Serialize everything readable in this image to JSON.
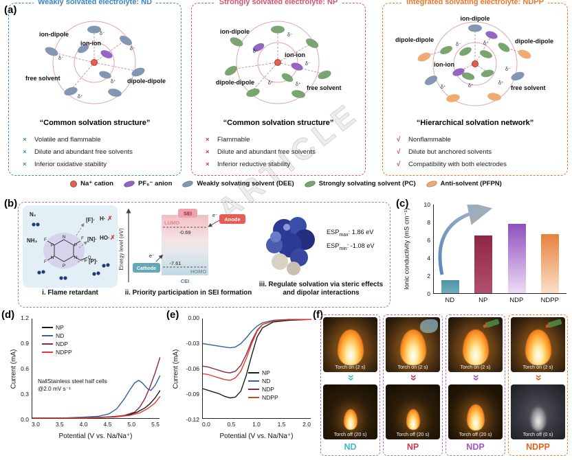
{
  "watermark": "ARTICLE",
  "symbols": {
    "delta_minus": "δ⁻",
    "delta_plus": "δ⁺",
    "cross": "✗",
    "electron": "e⁻"
  },
  "panel_labels": {
    "a": "(a)",
    "b": "(b)",
    "c": "(c)",
    "d": "(d)",
    "e": "(e)",
    "f": "(f)"
  },
  "panel_a": {
    "boxes": [
      {
        "title": "Weakly solvated electrolyte: ND",
        "accent": "#3d85c0",
        "bullet_color": "#3d85c0",
        "bullet_mark": "×",
        "subtitle": "“Common solvation structure”",
        "labels": {
          "ion_dipole": "ion-dipole",
          "ion_ion": "ion-ion",
          "dipole_dipole": "dipole-dipole",
          "free_solvent": "free solvent"
        },
        "bullets": [
          "Volatile and flammable",
          "Dilute and abundant free solvents",
          "Inferior oxidative stability"
        ]
      },
      {
        "title": "Strongly solvated electrolyte: NP",
        "accent": "#d4566a",
        "bullet_color": "#c23b50",
        "bullet_mark": "×",
        "subtitle": "“Common solvation structure”",
        "labels": {
          "ion_dipole": "ion-dipole",
          "ion_ion": "ion-ion",
          "dipole_dipole": "dipole-dipole",
          "free_solvent": "free solvent"
        },
        "bullets": [
          "Flammable",
          "Dilute and abundant free solvents",
          "Inferior reductive stability"
        ]
      },
      {
        "title": "Integrated solvating electrolyte: NDPP",
        "accent": "#e8772e",
        "bullet_color": "#c23b50",
        "bullet_mark": "√",
        "subtitle": "“Hierarchical solvation network”",
        "labels": {
          "ion_dipole": "ion-dipole",
          "dipole_dipole": "dipole-dipole",
          "dipole_dipole2": "dipole-dipole",
          "ion_ion": "ion-ion",
          "free_solvent": "free solvent"
        },
        "bullets": [
          "Nonflammable",
          "Dilute but anchored solvents",
          "Compatibility with both electrodes"
        ]
      }
    ],
    "legend": [
      {
        "label": "Na⁺ cation",
        "color": "#e0614f",
        "shape": "circle"
      },
      {
        "label": "PF₆⁻ anion",
        "color": "#9266c2",
        "shape": "ellipse"
      },
      {
        "label": "Weakly solvating solvent (DEE)",
        "color": "#8396b2",
        "shape": "ellipse"
      },
      {
        "label": "Strongly solvating solvent (PC)",
        "color": "#7aa571",
        "shape": "ellipse"
      },
      {
        "label": "Anti-solvent (PFPN)",
        "color": "#f0aa74",
        "shape": "ellipse"
      }
    ]
  },
  "panel_b": {
    "i": {
      "caption": "i. Flame retardant",
      "n2": "N₂",
      "nh3": "NH₃",
      "f_rad": "[F]·",
      "h_rad": "H·",
      "n_rad": "[N]·",
      "ho_rad": "HO·",
      "p_rad": "[P]·"
    },
    "ii": {
      "caption": "ii. Priority participation in SEI formation",
      "axis_label": "Energy level (eV)",
      "sei": "SEI",
      "anode": "Anode",
      "cathode": "Cathode",
      "cei": "CEI",
      "lumo": "LUMO",
      "homo": "HOMO",
      "lumo_value": "-0.69",
      "homo_value": "-7.61"
    },
    "iii": {
      "caption": "iii. Regulate solvation via steric effects and dipolar interactions",
      "esp_name": "ESP",
      "esp_max_sub": "max",
      "esp_max_value": ": 1.86 eV",
      "esp_min_sub": "min",
      "esp_min_value": ": -1.08 eV"
    }
  },
  "chart_data": [
    {
      "id": "c",
      "type": "bar",
      "ylabel": "Ionic conductivity (mS cm⁻¹)",
      "ylim": [
        0,
        10
      ],
      "yticks": [
        0,
        2,
        4,
        6,
        8,
        10
      ],
      "ytick_labels": [
        "10",
        "8",
        "6",
        "4",
        "2",
        "0"
      ],
      "categories": [
        "ND",
        "NP",
        "NDP",
        "NDPP"
      ],
      "values": [
        1.5,
        6.5,
        7.8,
        6.7
      ],
      "bars": [
        {
          "label": "ND",
          "value": 1.5,
          "top": "#4f93a3",
          "bottom": "#6fafbf"
        },
        {
          "label": "NP",
          "value": 6.5,
          "top": "#8e2743",
          "bottom": "#b2506b"
        },
        {
          "label": "NDP",
          "value": 7.8,
          "top": "#8f4fbf",
          "bottom": "#ecdcf5"
        },
        {
          "label": "NDPP",
          "value": 6.7,
          "top": "#e8823e",
          "bottom": "#fae0c8"
        }
      ]
    },
    {
      "id": "d",
      "type": "line",
      "xlabel": "Potential (V vs. Na/Na⁺)",
      "ylabel": "Current (mA)",
      "annotation_line1": "Na‖Stainless steel half cells",
      "annotation_line2": "@2.0 mV s⁻¹",
      "xlim": [
        3.0,
        5.5
      ],
      "ylim": [
        0,
        1.2
      ],
      "xtick_labels": [
        "3.0",
        "3.5",
        "4.0",
        "4.5",
        "5.0",
        "5.5"
      ],
      "ytick_labels": [
        "1.2",
        "0.9",
        "0.6",
        "0.3",
        "0.0"
      ],
      "series": [
        {
          "name": "NP",
          "color": "#1a1a1a",
          "x": [
            3.0,
            3.5,
            4.0,
            4.4,
            4.7,
            4.9,
            5.05,
            5.2,
            5.3,
            5.4,
            5.5
          ],
          "y": [
            0.01,
            0.01,
            0.01,
            0.02,
            0.03,
            0.05,
            0.08,
            0.13,
            0.18,
            0.25,
            0.34
          ]
        },
        {
          "name": "ND",
          "color": "#2f5fa5",
          "x": [
            3.0,
            3.6,
            4.0,
            4.3,
            4.5,
            4.65,
            4.8,
            4.9,
            5.0,
            5.08,
            5.15,
            5.25,
            5.32,
            5.4,
            5.5
          ],
          "y": [
            0.01,
            0.01,
            0.02,
            0.03,
            0.06,
            0.12,
            0.24,
            0.34,
            0.43,
            0.46,
            0.43,
            0.36,
            0.34,
            0.4,
            0.52
          ]
        },
        {
          "name": "NDP",
          "color": "#8e2743",
          "x": [
            3.0,
            4.0,
            4.5,
            4.8,
            5.0,
            5.1,
            5.2,
            5.3,
            5.4,
            5.5
          ],
          "y": [
            0.01,
            0.01,
            0.02,
            0.04,
            0.08,
            0.14,
            0.24,
            0.38,
            0.55,
            0.74
          ]
        },
        {
          "name": "NDPP",
          "color": "#e23b2e",
          "x": [
            3.0,
            4.0,
            4.6,
            4.9,
            5.1,
            5.25,
            5.4,
            5.5
          ],
          "y": [
            0.01,
            0.01,
            0.02,
            0.04,
            0.07,
            0.12,
            0.19,
            0.27
          ]
        }
      ]
    },
    {
      "id": "e",
      "type": "line",
      "xlabel": "Potential (V vs. Na/Na⁺)",
      "ylabel": "Current (mA)",
      "xlim": [
        0,
        2.0
      ],
      "ylim": [
        -0.12,
        0
      ],
      "xtick_labels": [
        "0.0",
        "0.5",
        "1.0",
        "1.5",
        "2.0"
      ],
      "ytick_labels": [
        "0.00",
        "-0.03",
        "-0.06",
        "-0.09",
        "-0.12"
      ],
      "series": [
        {
          "name": "NP",
          "color": "#1a1a1a",
          "x": [
            0.0,
            0.1,
            0.2,
            0.3,
            0.4,
            0.5,
            0.6,
            0.7,
            0.8,
            0.9,
            1.0,
            1.1,
            1.3,
            1.6,
            2.0
          ],
          "y": [
            -0.084,
            -0.086,
            -0.088,
            -0.09,
            -0.093,
            -0.095,
            -0.094,
            -0.087,
            -0.068,
            -0.044,
            -0.022,
            -0.011,
            -0.004,
            -0.002,
            -0.001
          ]
        },
        {
          "name": "ND",
          "color": "#2f5fa5",
          "x": [
            0.0,
            0.1,
            0.2,
            0.3,
            0.4,
            0.5,
            0.6,
            0.7,
            0.8,
            0.9,
            1.0,
            1.1,
            1.3,
            1.6,
            2.0
          ],
          "y": [
            -0.03,
            -0.031,
            -0.032,
            -0.033,
            -0.034,
            -0.035,
            -0.034,
            -0.03,
            -0.023,
            -0.015,
            -0.009,
            -0.005,
            -0.002,
            -0.001,
            -0.001
          ]
        },
        {
          "name": "NDP",
          "color": "#8e2743",
          "x": [
            0.0,
            0.1,
            0.2,
            0.3,
            0.4,
            0.5,
            0.6,
            0.7,
            0.8,
            0.9,
            1.0,
            1.1,
            1.3,
            1.6,
            2.0
          ],
          "y": [
            -0.057,
            -0.058,
            -0.06,
            -0.062,
            -0.064,
            -0.065,
            -0.063,
            -0.056,
            -0.043,
            -0.027,
            -0.014,
            -0.007,
            -0.003,
            -0.001,
            -0.001
          ]
        },
        {
          "name": "NDPP",
          "color": "#e23b2e",
          "x": [
            0.0,
            0.1,
            0.2,
            0.3,
            0.4,
            0.5,
            0.6,
            0.7,
            0.8,
            0.9,
            1.0,
            1.1,
            1.3,
            1.6,
            2.0
          ],
          "y": [
            -0.066,
            -0.067,
            -0.069,
            -0.071,
            -0.073,
            -0.074,
            -0.071,
            -0.063,
            -0.048,
            -0.03,
            -0.015,
            -0.007,
            -0.003,
            -0.001,
            -0.001
          ]
        }
      ]
    }
  ],
  "panel_f": {
    "columns": [
      {
        "name": "ND",
        "color": "#3fb8cc",
        "border": "#b06fc9",
        "on_caption": "Torch on (2 s)",
        "off_caption": "Torch off (20 s)"
      },
      {
        "name": "NP",
        "color": "#c23b50",
        "border": "#b06fc9",
        "on_caption": "Torch on (2 s)",
        "off_caption": "Torch off (20 s)"
      },
      {
        "name": "NDP",
        "color": "#a455c8",
        "border": "#b06fc9",
        "on_caption": "Torch on (2 s)",
        "off_caption": "Torch off (20 s)"
      },
      {
        "name": "NDPP",
        "color": "#e8601e",
        "border": "#e8822e",
        "on_caption": "Torch on (2 s)",
        "off_caption": "Torch off (0 s)"
      }
    ]
  }
}
